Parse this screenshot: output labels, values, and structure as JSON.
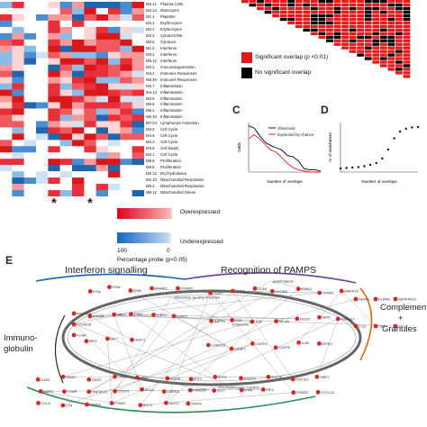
{
  "heatmap": {
    "module_ids": [
      "M4.11",
      "M4.14",
      "M1.1",
      "M2.1",
      "M2.2",
      "M2.3",
      "M3.6",
      "M1.2",
      "M3.4",
      "M5.12",
      "M3.2",
      "M4.2",
      "M8.46",
      "M3.7",
      "M4.13",
      "M3.6",
      "M6.8",
      "M5.1",
      "M5.10",
      "M7.24",
      "M3.2",
      "M4.6",
      "M3.3",
      "M3.5",
      "M4.1",
      "M5.8",
      "M5.6",
      "M5.12",
      "M4.10",
      "M6.2",
      "M6.12"
    ],
    "module_functions": [
      "Plasma Cells",
      "Monocytes",
      "Platelets",
      "Erythrocytes",
      "Erythrocytes",
      "Cytotoxic/NK",
      "Cytotoxic",
      "Interferon",
      "Interferon",
      "Interferon",
      "Immunosuppression",
      "Immunes Responses",
      "Immunes Responses",
      "Inflammation",
      "Inflammation",
      "Inflammation",
      "Inflammation",
      "Inflammation",
      "Inflammation",
      "Lymphocyte Activation",
      "Cell Cycle",
      "Cell Cycle",
      "Cell Cycle",
      "Cell Death",
      "Cell Cycle",
      "Proliferation",
      "Proliferation",
      "DC/Hydrolases",
      "Mitochondrial Respiration",
      "Mitochondrial Respiration",
      "Mitochondrial Stress"
    ],
    "asterisks": [
      "*",
      "*"
    ]
  },
  "legend_c": {
    "over_label": "Overexpressed",
    "under_label": "Underexpressed",
    "tick_left": "100",
    "tick_right": "0",
    "caption": "Percentage probe (p<0.05)"
  },
  "overlap_legend": {
    "sig": "Significant overlap (p <0.01)",
    "nonsig": "No significant overlap",
    "sig_color": "#e31a1c",
    "nonsig_color": "#000000"
  },
  "panels": {
    "c": "C",
    "d": "D",
    "e": "E"
  },
  "chart_data": [
    {
      "type": "line",
      "title": "",
      "xlabel": "Number of overlaps",
      "ylabel": "Odds",
      "series": [
        {
          "name": "Observed",
          "color": "#000000",
          "x": [
            1,
            2,
            3,
            4,
            5,
            6,
            7,
            8,
            9,
            10,
            11,
            12,
            13,
            14
          ],
          "y": [
            0.42,
            0.4,
            0.33,
            0.27,
            0.24,
            0.22,
            0.2,
            0.15,
            0.14,
            0.1,
            0.03,
            0.02,
            0.02,
            0.01
          ]
        },
        {
          "name": "Expected by chance",
          "color": "#e31a1c",
          "x": [
            1,
            2,
            3,
            4,
            5,
            6,
            7,
            8,
            9,
            10,
            11,
            12,
            13,
            14
          ],
          "y": [
            0.3,
            0.34,
            0.3,
            0.25,
            0.2,
            0.18,
            0.13,
            0.08,
            0.04,
            0.02,
            0.01,
            0.0,
            0.0,
            0.0
          ]
        }
      ]
    },
    {
      "type": "scatter",
      "title": "",
      "xlabel": "Number of overlaps",
      "ylabel": "% of enrichment",
      "series": [
        {
          "name": "",
          "x": [
            1,
            2,
            3,
            4,
            5,
            6,
            7,
            8,
            9,
            10,
            11,
            12,
            13,
            14
          ],
          "y": [
            8,
            9,
            10,
            11,
            13,
            16,
            20,
            30,
            50,
            75,
            90,
            96,
            99,
            100
          ]
        }
      ]
    }
  ],
  "network": {
    "headings": {
      "interferon": "Interferon signalling",
      "pamps": "Recognition of PAMPS",
      "complement": "Complement",
      "plus": "+",
      "granules": "Granules",
      "immuno": "Immuno-",
      "globulin": "globulin"
    },
    "genes": [
      "IFNγ",
      "IFNA",
      "IFNB",
      "IFNAR1",
      "IFNAR2",
      "IFNGR",
      "JAK1",
      "TYK2",
      "STAT1",
      "STAT2",
      "IRF9",
      "IRF7",
      "ISGF3",
      "TLR2",
      "TLR4",
      "TLR8",
      "MYD88",
      "IRAK4",
      "TRAF6",
      "MAPK14",
      "BATF2",
      "FOS",
      "JUN",
      "NF-κB",
      "NOD2",
      "AIM2",
      "CARD17",
      "CARD16",
      "CASP1",
      "CASP4",
      "CASP5",
      "IL1B",
      "RIPK2",
      "DEFA1",
      "ELANE",
      "SERPING1",
      "C1Q",
      "CR1",
      "SELP",
      "FCGR1A",
      "FCGR1B",
      "FCAR",
      "OAS1",
      "OAS2",
      "OAS3",
      "OASL",
      "MX1",
      "ISG15",
      "IFIT1",
      "IFIT3",
      "RSAD2",
      "SOCS1",
      "SOCS3",
      "GBP1",
      "GBP5",
      "TYMP",
      "TNFSF10",
      "CD274",
      "SCL6",
      "CMPK2",
      "FAM26F",
      "IFI27",
      "IFI44",
      "IRF1",
      "PSME2",
      "CXCL10",
      "CCL8",
      "LYN",
      "PTPN2",
      "FFAR2",
      "BCL6",
      "MUC1",
      "STAT4",
      "Endosome",
      "peptidoglycan",
      "intracellular sensing of dsDNA",
      "Pro-inflammatory Cytokine"
    ]
  }
}
